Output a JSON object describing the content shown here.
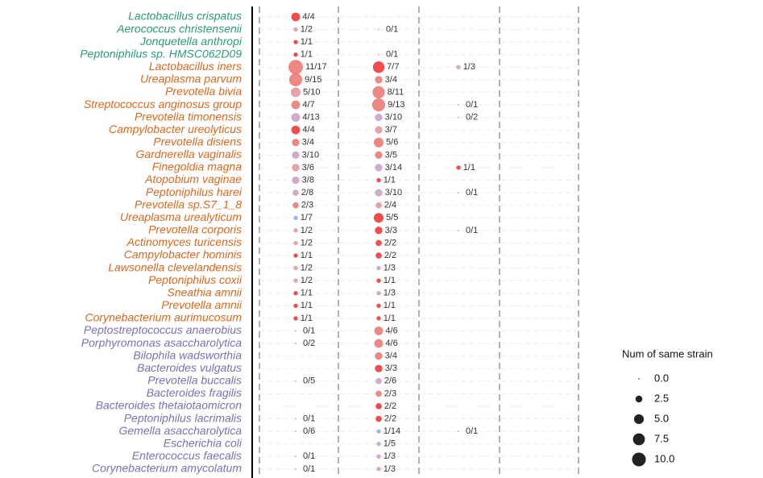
{
  "chart_data": {
    "type": "dotplot",
    "categories": [
      "Lactobacillus crispatus",
      "Aerococcus christensenii",
      "Jonquetella anthropi",
      "Peptoniphilus sp. HMSC062D09",
      "Lactobacillus iners",
      "Ureaplasma parvum",
      "Prevotella bivia",
      "Streptococcus anginosus group",
      "Prevotella timonensis",
      "Campylobacter ureolyticus",
      "Prevotella disiens",
      "Gardnerella vaginalis",
      "Finegoldia magna",
      "Atopobium vaginae",
      "Peptoniphilus harei",
      "Prevotella sp.S7_1_8",
      "Ureaplasma urealyticum",
      "Prevotella corporis",
      "Actinomyces turicensis",
      "Campylobacter hominis",
      "Lawsonella clevelandensis",
      "Peptoniphilus coxii",
      "Sneathia amnii",
      "Prevotella amnii",
      "Corynebacterium aurimucosum",
      "Peptostreptococcus anaerobius",
      "Porphyromonas asaccharolytica",
      "Bilophila wadsworthia",
      "Bacteroides vulgatus",
      "Prevotella buccalis",
      "Bacteroides fragilis",
      "Bacteroides thetaiotaomicron",
      "Peptoniphilus lacrimalis",
      "Gemella asaccharolytica",
      "Escherichia coli",
      "Enterococcus faecalis",
      "Corynebacterium amycolatum"
    ],
    "category_colors": [
      "#2a9a78",
      "#2a9a78",
      "#2a9a78",
      "#2a9a78",
      "#d8681e",
      "#d8681e",
      "#d8681e",
      "#d8681e",
      "#d8681e",
      "#d8681e",
      "#d8681e",
      "#d8681e",
      "#d8681e",
      "#d8681e",
      "#d8681e",
      "#d8681e",
      "#d8681e",
      "#d8681e",
      "#d8681e",
      "#d8681e",
      "#d8681e",
      "#d8681e",
      "#d8681e",
      "#d8681e",
      "#d8681e",
      "#7b70b2",
      "#7b70b2",
      "#7b70b2",
      "#7b70b2",
      "#7b70b2",
      "#7b70b2",
      "#7b70b2",
      "#7b70b2",
      "#7b70b2",
      "#7b70b2",
      "#7b70b2",
      "#7b70b2"
    ],
    "series": [
      {
        "values": [
          4,
          1,
          1,
          1,
          11,
          9,
          5,
          4,
          4,
          4,
          3,
          3,
          3,
          3,
          2,
          2,
          1,
          1,
          1,
          1,
          1,
          1,
          1,
          1,
          1,
          0,
          0,
          null,
          null,
          0,
          null,
          null,
          0,
          0,
          null,
          0,
          0
        ],
        "value_labels": [
          "4/4",
          "1/2",
          "1/1",
          "1/1",
          "11/17",
          "9/15",
          "5/10",
          "4/7",
          "4/13",
          "4/4",
          "3/4",
          "3/10",
          "3/6",
          "3/8",
          "2/8",
          "2/3",
          "1/7",
          "1/2",
          "1/2",
          "1/1",
          "1/2",
          "1/2",
          "1/1",
          "1/1",
          "1/1",
          "0/1",
          "0/2",
          null,
          null,
          "0/5",
          null,
          null,
          "0/1",
          "0/6",
          null,
          "0/1",
          "0/1"
        ],
        "colors": [
          "#f03a3a",
          "#e39a9f",
          "#f03a3a",
          "#f03a3a",
          "#ec7b78",
          "#ec7b78",
          "#e39a9f",
          "#ec7b78",
          "#c9a4c4",
          "#f03a3a",
          "#ec7b78",
          "#c9a4c4",
          "#e39a9f",
          "#c9a4c4",
          "#c9a4c4",
          "#ec7b78",
          "#93aee6",
          "#e39a9f",
          "#e39a9f",
          "#f03a3a",
          "#e39a9f",
          "#e39a9f",
          "#f03a3a",
          "#f03a3a",
          "#f03a3a",
          "#9bb4e0",
          "#9bb4e0",
          null,
          null,
          "#9bb4e0",
          null,
          null,
          "#9bb4e0",
          "#9bb4e0",
          null,
          "#9bb4e0",
          "#9bb4e0"
        ]
      },
      {
        "values": [
          null,
          0,
          null,
          0,
          7,
          3,
          8,
          9,
          3,
          3,
          5,
          3,
          3,
          1,
          3,
          2,
          5,
          3,
          2,
          2,
          1,
          1,
          1,
          1,
          1,
          4,
          4,
          3,
          3,
          2,
          2,
          2,
          2,
          1,
          1,
          1,
          1
        ],
        "value_labels": [
          null,
          "0/1",
          null,
          "0/1",
          "7/7",
          "3/4",
          "8/11",
          "9/13",
          "3/10",
          "3/7",
          "5/6",
          "3/5",
          "3/14",
          "1/1",
          "3/10",
          "2/4",
          "5/5",
          "3/3",
          "2/2",
          "2/2",
          "1/3",
          "1/1",
          "1/3",
          "1/1",
          "1/1",
          "4/6",
          "4/6",
          "3/4",
          "3/3",
          "2/6",
          "2/3",
          "2/2",
          "2/2",
          "1/14",
          "1/5",
          "1/3",
          "1/3"
        ],
        "colors": [
          null,
          "#9bb4e0",
          null,
          "#9bb4e0",
          "#f03a3a",
          "#ec7b78",
          "#ec7b78",
          "#ec7b78",
          "#c9a4c4",
          "#e39a9f",
          "#ec7b78",
          "#ec7b78",
          "#c9a4c4",
          "#f03a3a",
          "#c9a4c4",
          "#e39a9f",
          "#f03a3a",
          "#f03a3a",
          "#f03a3a",
          "#f03a3a",
          "#c9a4c4",
          "#f03a3a",
          "#c9a4c4",
          "#f03a3a",
          "#f03a3a",
          "#ec7b78",
          "#ec7b78",
          "#ec7b78",
          "#f03a3a",
          "#c9a4c4",
          "#ec7b78",
          "#f03a3a",
          "#f03a3a",
          "#93aee6",
          "#b8aed8",
          "#c9a4c4",
          "#c9a4c4"
        ]
      },
      {
        "values": [
          null,
          null,
          null,
          null,
          1,
          null,
          null,
          0,
          0,
          null,
          null,
          null,
          1,
          null,
          0,
          null,
          null,
          0,
          null,
          null,
          null,
          null,
          null,
          null,
          null,
          null,
          null,
          null,
          null,
          null,
          null,
          null,
          null,
          0,
          null,
          null,
          null
        ],
        "value_labels": [
          null,
          null,
          null,
          null,
          "1/3",
          null,
          null,
          "0/1",
          "0/2",
          null,
          null,
          null,
          "1/1",
          null,
          "0/1",
          null,
          null,
          "0/1",
          null,
          null,
          null,
          null,
          null,
          null,
          null,
          null,
          null,
          null,
          null,
          null,
          null,
          null,
          null,
          "0/1",
          null,
          null,
          null
        ],
        "colors": [
          null,
          null,
          null,
          null,
          "#c9a4c4",
          null,
          null,
          "#9bb4e0",
          "#9bb4e0",
          null,
          null,
          null,
          "#f03a3a",
          null,
          "#9bb4e0",
          null,
          null,
          "#9bb4e0",
          null,
          null,
          null,
          null,
          null,
          null,
          null,
          null,
          null,
          null,
          null,
          null,
          null,
          null,
          null,
          "#9bb4e0",
          null,
          null,
          null
        ]
      }
    ],
    "legend": {
      "title": "Num of same strain",
      "sizes": [
        {
          "value": 0,
          "label": "0.0"
        },
        2.5,
        {
          "value": 5,
          "label": "5.0"
        },
        7.5,
        {
          "value": 10,
          "label": "10.0"
        }
      ]
    }
  }
}
